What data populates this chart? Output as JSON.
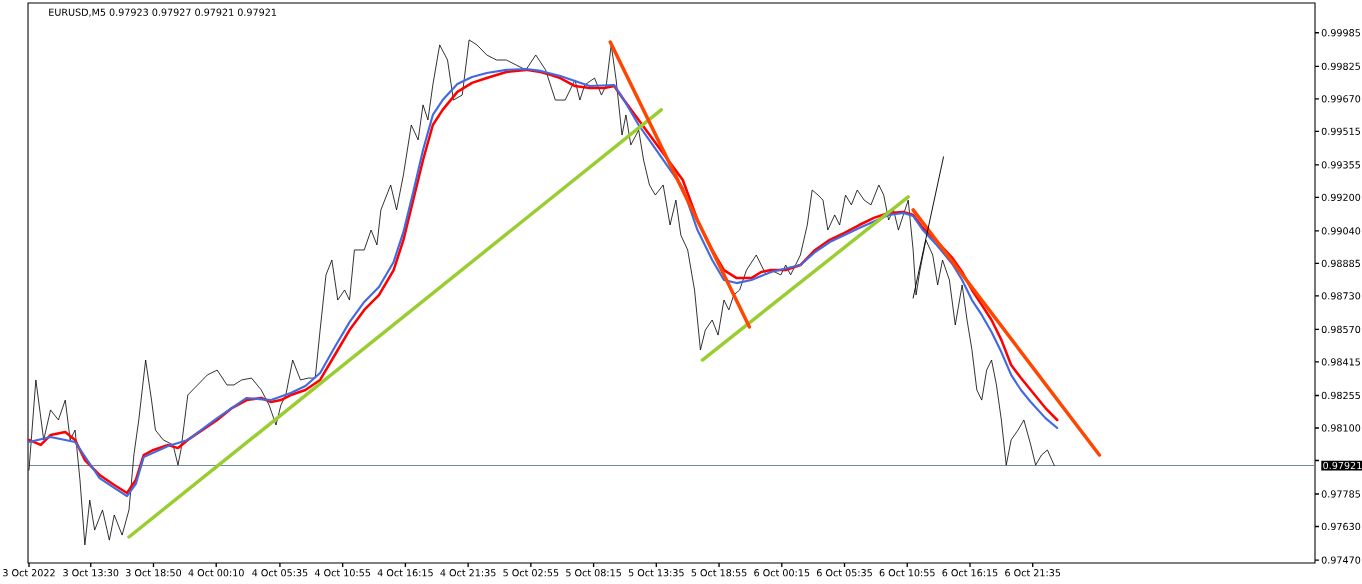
{
  "chart_data": {
    "type": "line",
    "title": "EURUSD,M5  0.97923 0.97927 0.97921 0.97921",
    "xlim": [
      "2022-10-03T08:10",
      "2022-10-07T21:35"
    ],
    "ylim": [
      0.97456,
      1.00127
    ],
    "xticks": [
      {
        "value": "2022-10-03T08:15",
        "label": "3 Oct 2022"
      },
      {
        "value": "2022-10-03T13:30",
        "label": "3 Oct 13:30"
      },
      {
        "value": "2022-10-03T18:50",
        "label": "3 Oct 18:50"
      },
      {
        "value": "2022-10-04T00:10",
        "label": "4 Oct 00:10"
      },
      {
        "value": "2022-10-04T05:35",
        "label": "4 Oct 05:35"
      },
      {
        "value": "2022-10-04T10:55",
        "label": "4 Oct 10:55"
      },
      {
        "value": "2022-10-04T16:15",
        "label": "4 Oct 16:15"
      },
      {
        "value": "2022-10-04T21:35",
        "label": "4 Oct 21:35"
      },
      {
        "value": "2022-10-05T02:55",
        "label": "5 Oct 02:55"
      },
      {
        "value": "2022-10-05T08:15",
        "label": "5 Oct 08:15"
      },
      {
        "value": "2022-10-05T13:35",
        "label": "5 Oct 13:35"
      },
      {
        "value": "2022-10-05T18:55",
        "label": "5 Oct 18:55"
      },
      {
        "value": "2022-10-06T00:15",
        "label": "6 Oct 00:15"
      },
      {
        "value": "2022-10-06T05:35",
        "label": "6 Oct 05:35"
      },
      {
        "value": "2022-10-06T10:55",
        "label": "6 Oct 10:55"
      },
      {
        "value": "2022-10-06T16:15",
        "label": "6 Oct 16:15"
      },
      {
        "value": "2022-10-06T21:35",
        "label": "6 Oct 21:35"
      }
    ],
    "yticks": [
      {
        "value": 0.9747,
        "label": "0.97470"
      },
      {
        "value": 0.9763,
        "label": "0.97630"
      },
      {
        "value": 0.97785,
        "label": "0.97785"
      },
      {
        "value": 0.97945,
        "label": null
      },
      {
        "value": 0.981,
        "label": "0.98100"
      },
      {
        "value": 0.98255,
        "label": "0.98255"
      },
      {
        "value": 0.98415,
        "label": "0.98415"
      },
      {
        "value": 0.9857,
        "label": "0.98570"
      },
      {
        "value": 0.9873,
        "label": "0.98730"
      },
      {
        "value": 0.98885,
        "label": "0.98885"
      },
      {
        "value": 0.9904,
        "label": "0.99040"
      },
      {
        "value": 0.992,
        "label": "0.99200"
      },
      {
        "value": 0.99355,
        "label": "0.99355"
      },
      {
        "value": 0.99515,
        "label": "0.99515"
      },
      {
        "value": 0.9967,
        "label": "0.99670"
      },
      {
        "value": 0.99825,
        "label": "0.99825"
      },
      {
        "value": 0.99985,
        "label": "0.99985"
      }
    ],
    "ref_lines": [
      {
        "axis": "y",
        "value": 0.97921,
        "label": "0.97921",
        "color": "#778899"
      }
    ],
    "series": [
      {
        "color": "#000000",
        "x": [
          "2022-10-03T08:15",
          "2022-10-03T08:50",
          "2022-10-03T09:30",
          "2022-10-03T10:05",
          "2022-10-03T10:45",
          "2022-10-03T11:20",
          "2022-10-03T11:45",
          "2022-10-03T12:10",
          "2022-10-03T12:35",
          "2022-10-03T13:00",
          "2022-10-03T13:25",
          "2022-10-03T13:50",
          "2022-10-03T14:30",
          "2022-10-03T15:05",
          "2022-10-03T15:30",
          "2022-10-03T16:10",
          "2022-10-03T16:45",
          "2022-10-03T17:10",
          "2022-10-03T17:35",
          "2022-10-03T18:10",
          "2022-10-03T18:40",
          "2022-10-03T19:00",
          "2022-10-03T19:40",
          "2022-10-03T20:30",
          "2022-10-03T20:55",
          "2022-10-03T21:10",
          "2022-10-03T21:45",
          "2022-10-03T22:35",
          "2022-10-03T23:25",
          "2022-10-04T00:15",
          "2022-10-04T01:05",
          "2022-10-04T01:40",
          "2022-10-04T02:20",
          "2022-10-04T03:10",
          "2022-10-04T04:00",
          "2022-10-04T04:40",
          "2022-10-04T05:15",
          "2022-10-04T05:40",
          "2022-10-04T06:05",
          "2022-10-04T06:40",
          "2022-10-04T07:20",
          "2022-10-04T08:00",
          "2022-10-04T08:35",
          "2022-10-04T09:00",
          "2022-10-04T09:30",
          "2022-10-04T10:00",
          "2022-10-04T10:30",
          "2022-10-04T11:05",
          "2022-10-04T11:30",
          "2022-10-04T11:55",
          "2022-10-04T12:45",
          "2022-10-04T13:20",
          "2022-10-04T13:50",
          "2022-10-04T14:10",
          "2022-10-04T15:00",
          "2022-10-04T15:30",
          "2022-10-04T16:05",
          "2022-10-04T16:45",
          "2022-10-04T17:20",
          "2022-10-04T17:45",
          "2022-10-04T18:10",
          "2022-10-04T18:35",
          "2022-10-04T19:10",
          "2022-10-04T19:50",
          "2022-10-04T20:20",
          "2022-10-04T21:05",
          "2022-10-04T21:40",
          "2022-10-04T22:20",
          "2022-10-04T23:10",
          "2022-10-05T00:00",
          "2022-10-05T00:50",
          "2022-10-05T01:40",
          "2022-10-05T02:30",
          "2022-10-05T03:20",
          "2022-10-05T04:10",
          "2022-10-05T05:00",
          "2022-10-05T05:50",
          "2022-10-05T06:40",
          "2022-10-05T07:05",
          "2022-10-05T07:30",
          "2022-10-05T08:20",
          "2022-10-05T08:55",
          "2022-10-05T09:20",
          "2022-10-05T09:45",
          "2022-10-05T10:10",
          "2022-10-05T10:40",
          "2022-10-05T11:00",
          "2022-10-05T11:25",
          "2022-10-05T12:05",
          "2022-10-05T12:30",
          "2022-10-05T13:00",
          "2022-10-05T13:30",
          "2022-10-05T14:10",
          "2022-10-05T14:45",
          "2022-10-05T15:15",
          "2022-10-05T15:40",
          "2022-10-05T16:15",
          "2022-10-05T16:50",
          "2022-10-05T17:20",
          "2022-10-05T17:45",
          "2022-10-05T18:20",
          "2022-10-05T18:50",
          "2022-10-05T19:20",
          "2022-10-05T19:45",
          "2022-10-05T20:10",
          "2022-10-05T20:40",
          "2022-10-05T21:15",
          "2022-10-05T22:05",
          "2022-10-05T22:30",
          "2022-10-05T22:55",
          "2022-10-05T23:20",
          "2022-10-06T00:10",
          "2022-10-06T00:35",
          "2022-10-06T01:00",
          "2022-10-06T01:25",
          "2022-10-06T01:50",
          "2022-10-06T02:25",
          "2022-10-06T02:50",
          "2022-10-06T03:20",
          "2022-10-06T03:45",
          "2022-10-06T04:10",
          "2022-10-06T04:45",
          "2022-10-06T05:10",
          "2022-10-06T05:40",
          "2022-10-06T06:10",
          "2022-10-06T06:40",
          "2022-10-06T07:15",
          "2022-10-06T07:50",
          "2022-10-06T08:30",
          "2022-10-06T08:55",
          "2022-10-06T09:20",
          "2022-10-06T09:45",
          "2022-10-06T10:10",
          "2022-10-06T10:35",
          "2022-10-06T11:00",
          "2022-10-06T11:25",
          "2022-10-06T11:40",
          "2022-10-06T12:00",
          "2022-10-06T12:30",
          "2022-10-06T13:05",
          "2022-10-06T13:30",
          "2022-10-06T13:55",
          "2022-10-06T14:30",
          "2022-10-06T15:00",
          "2022-10-06T15:35",
          "2022-10-06T16:00",
          "2022-10-06T16:25",
          "2022-10-06T16:50",
          "2022-10-06T17:15",
          "2022-10-06T17:40",
          "2022-10-06T18:05",
          "2022-10-06T18:30",
          "2022-10-06T18:55",
          "2022-10-06T19:20",
          "2022-10-06T19:45",
          "2022-10-06T20:20",
          "2022-10-06T20:50",
          "2022-10-06T21:25",
          "2022-10-06T21:50",
          "2022-10-06T22:20",
          "2022-10-06T22:50",
          "2022-10-06T23:25"
        ],
        "values": [
          0.97899,
          0.98329,
          0.98043,
          0.98186,
          0.98138,
          0.98233,
          0.98043,
          0.9809,
          0.97852,
          0.97542,
          0.97756,
          0.97613,
          0.97709,
          0.97565,
          0.97685,
          0.97589,
          0.97709,
          0.97971,
          0.98138,
          0.98424,
          0.98233,
          0.9809,
          0.98043,
          0.98019,
          0.97923,
          0.97995,
          0.98257,
          0.98305,
          0.98353,
          0.98376,
          0.98305,
          0.98305,
          0.98329,
          0.98338,
          0.98281,
          0.98209,
          0.98114,
          0.98209,
          0.98257,
          0.98424,
          0.98329,
          0.98338,
          0.98338,
          0.98567,
          0.9883,
          0.98901,
          0.9871,
          0.98758,
          0.9871,
          0.98949,
          0.98949,
          0.99044,
          0.98973,
          0.9914,
          0.99259,
          0.9914,
          0.99307,
          0.99545,
          0.99474,
          0.99641,
          0.99569,
          0.99736,
          0.99927,
          0.99855,
          0.99664,
          0.99688,
          0.99951,
          0.99927,
          0.99879,
          0.99855,
          0.99855,
          0.99831,
          0.99808,
          0.99879,
          0.99808,
          0.99664,
          0.99664,
          0.9976,
          0.99664,
          0.99736,
          0.99769,
          0.99688,
          0.99736,
          0.99927,
          0.9976,
          0.99497,
          0.99593,
          0.9945,
          0.99521,
          0.99378,
          0.99259,
          0.99211,
          0.99259,
          0.99068,
          0.99187,
          0.9902,
          0.98949,
          0.98758,
          0.98472,
          0.98567,
          0.98615,
          0.98543,
          0.9871,
          0.98663,
          0.98734,
          0.98758,
          0.98853,
          0.98925,
          0.98877,
          0.9883,
          0.98853,
          0.9883,
          0.98877,
          0.9883,
          0.98877,
          0.98925,
          0.99068,
          0.99235,
          0.99211,
          0.99187,
          0.99044,
          0.99116,
          0.99068,
          0.99211,
          0.99164,
          0.99235,
          0.99187,
          0.99164,
          0.99259,
          0.99211,
          0.99092,
          0.9914,
          0.99044,
          0.99116,
          0.99187,
          0.98949,
          0.98734,
          0.98853,
          0.98997,
          0.98925,
          0.98782,
          0.98901,
          0.98806,
          0.98591,
          0.98782,
          0.98615,
          0.98472,
          0.98281,
          0.98233,
          0.98376,
          0.98424,
          0.98305,
          0.98138,
          0.97923,
          0.98043,
          0.9809,
          0.98138,
          0.98019,
          0.97923,
          0.97971,
          0.97995,
          0.97921
        ]
      },
      {
        "color": "#ff0000",
        "x": [
          "2022-10-03T08:15",
          "2022-10-03T09:15",
          "2022-10-03T10:05",
          "2022-10-03T11:20",
          "2022-10-03T12:10",
          "2022-10-03T13:00",
          "2022-10-03T14:15",
          "2022-10-03T15:30",
          "2022-10-03T16:35",
          "2022-10-03T17:20",
          "2022-10-03T18:00",
          "2022-10-03T18:50",
          "2022-10-03T20:05",
          "2022-10-03T20:55",
          "2022-10-03T21:45",
          "2022-10-03T23:00",
          "2022-10-04T00:15",
          "2022-10-04T01:30",
          "2022-10-04T02:45",
          "2022-10-04T04:00",
          "2022-10-04T04:50",
          "2022-10-04T05:40",
          "2022-10-04T06:30",
          "2022-10-04T07:45",
          "2022-10-04T09:00",
          "2022-10-04T10:15",
          "2022-10-04T11:30",
          "2022-10-04T12:45",
          "2022-10-04T14:00",
          "2022-10-04T15:15",
          "2022-10-04T16:05",
          "2022-10-04T16:55",
          "2022-10-04T17:45",
          "2022-10-04T18:35",
          "2022-10-04T19:25",
          "2022-10-04T20:40",
          "2022-10-04T21:55",
          "2022-10-04T23:10",
          "2022-10-05T00:50",
          "2022-10-05T02:30",
          "2022-10-05T03:45",
          "2022-10-05T04:35",
          "2022-10-05T05:25",
          "2022-10-05T06:40",
          "2022-10-05T07:55",
          "2022-10-05T09:10",
          "2022-10-05T10:00",
          "2022-10-05T10:50",
          "2022-10-05T12:05",
          "2022-10-05T13:20",
          "2022-10-05T14:35",
          "2022-10-05T15:50",
          "2022-10-05T17:05",
          "2022-10-05T18:20",
          "2022-10-05T19:20",
          "2022-10-05T20:25",
          "2022-10-05T21:40",
          "2022-10-05T22:30",
          "2022-10-05T23:20",
          "2022-10-06T00:35",
          "2022-10-06T01:50",
          "2022-10-06T03:05",
          "2022-10-06T04:20",
          "2022-10-06T05:35",
          "2022-10-06T06:50",
          "2022-10-06T08:05",
          "2022-10-06T09:20",
          "2022-10-06T10:35",
          "2022-10-06T11:25",
          "2022-10-06T12:15",
          "2022-10-06T13:30",
          "2022-10-06T14:45",
          "2022-10-06T15:35",
          "2022-10-06T16:25",
          "2022-10-06T17:15",
          "2022-10-06T18:05",
          "2022-10-06T18:55",
          "2022-10-06T19:45",
          "2022-10-06T20:35",
          "2022-10-06T21:25",
          "2022-10-06T22:40",
          "2022-10-06T23:40"
        ],
        "values": [
          0.98043,
          0.98019,
          0.98066,
          0.98081,
          0.98043,
          0.97947,
          0.97876,
          0.97828,
          0.9779,
          0.97852,
          0.97971,
          0.97995,
          0.98019,
          0.98004,
          0.98043,
          0.9809,
          0.98138,
          0.98195,
          0.98233,
          0.98243,
          0.98224,
          0.98233,
          0.98257,
          0.98281,
          0.98329,
          0.98448,
          0.98567,
          0.98663,
          0.98734,
          0.98853,
          0.98997,
          0.99187,
          0.99378,
          0.99545,
          0.99617,
          0.99703,
          0.99746,
          0.99769,
          0.99798,
          0.99808,
          0.99798,
          0.99784,
          0.99769,
          0.99731,
          0.99722,
          0.99722,
          0.99731,
          0.99664,
          0.99569,
          0.99474,
          0.99378,
          0.99283,
          0.99092,
          0.98949,
          0.98853,
          0.98815,
          0.98815,
          0.98844,
          0.98853,
          0.98853,
          0.98877,
          0.98949,
          0.98997,
          0.9903,
          0.99068,
          0.99102,
          0.99125,
          0.9913,
          0.99116,
          0.99054,
          0.98987,
          0.98911,
          0.98844,
          0.98758,
          0.98687,
          0.98615,
          0.9852,
          0.984,
          0.98338,
          0.98281,
          0.98195,
          0.98138
        ]
      },
      {
        "color": "#4169e1",
        "x": [
          "2022-10-03T08:15",
          "2022-10-03T10:05",
          "2022-10-03T12:10",
          "2022-10-03T14:15",
          "2022-10-03T15:30",
          "2022-10-03T16:35",
          "2022-10-03T17:20",
          "2022-10-03T18:00",
          "2022-10-03T20:05",
          "2022-10-03T21:45",
          "2022-10-04T00:15",
          "2022-10-04T02:45",
          "2022-10-04T04:50",
          "2022-10-04T06:30",
          "2022-10-04T07:45",
          "2022-10-04T09:00",
          "2022-10-04T10:15",
          "2022-10-04T11:30",
          "2022-10-04T12:45",
          "2022-10-04T14:00",
          "2022-10-04T15:15",
          "2022-10-04T16:05",
          "2022-10-04T16:55",
          "2022-10-04T17:45",
          "2022-10-04T18:35",
          "2022-10-04T19:25",
          "2022-10-04T20:40",
          "2022-10-04T21:55",
          "2022-10-04T23:10",
          "2022-10-05T00:50",
          "2022-10-05T02:30",
          "2022-10-05T03:45",
          "2022-10-05T05:25",
          "2022-10-05T07:55",
          "2022-10-05T10:00",
          "2022-10-05T10:50",
          "2022-10-05T12:05",
          "2022-10-05T13:20",
          "2022-10-05T14:35",
          "2022-10-05T15:50",
          "2022-10-05T17:05",
          "2022-10-05T18:20",
          "2022-10-05T19:20",
          "2022-10-05T20:25",
          "2022-10-05T21:40",
          "2022-10-05T23:20",
          "2022-10-06T01:50",
          "2022-10-06T03:05",
          "2022-10-06T04:20",
          "2022-10-06T06:50",
          "2022-10-06T09:20",
          "2022-10-06T10:35",
          "2022-10-06T11:25",
          "2022-10-06T12:15",
          "2022-10-06T13:30",
          "2022-10-06T14:45",
          "2022-10-06T15:35",
          "2022-10-06T16:25",
          "2022-10-06T17:15",
          "2022-10-06T18:05",
          "2022-10-06T18:55",
          "2022-10-06T19:45",
          "2022-10-06T20:35",
          "2022-10-06T21:25",
          "2022-10-06T22:40",
          "2022-10-06T23:40"
        ],
        "values": [
          0.98033,
          0.98057,
          0.98033,
          0.97861,
          0.97814,
          0.97775,
          0.97833,
          0.97961,
          0.98014,
          0.98043,
          0.98147,
          0.98243,
          0.98233,
          0.98267,
          0.983,
          0.98362,
          0.98486,
          0.98605,
          0.98701,
          0.98772,
          0.98892,
          0.99035,
          0.99226,
          0.99426,
          0.99593,
          0.99664,
          0.99741,
          0.99774,
          0.99793,
          0.99808,
          0.99812,
          0.99803,
          0.99779,
          0.99731,
          0.99736,
          0.99664,
          0.99545,
          0.99445,
          0.99345,
          0.99245,
          0.99044,
          0.98901,
          0.98806,
          0.98791,
          0.98806,
          0.98844,
          0.98877,
          0.98939,
          0.98987,
          0.99054,
          0.99116,
          0.99125,
          0.99111,
          0.99044,
          0.98968,
          0.98882,
          0.98806,
          0.9871,
          0.98639,
          0.98558,
          0.98462,
          0.98353,
          0.98281,
          0.98224,
          0.98147,
          0.981
        ]
      },
      {
        "color": "#9acd32",
        "x": [
          "2022-10-03T16:45",
          "2022-10-05T14:00"
        ],
        "values": [
          0.9758,
          0.99617
        ]
      },
      {
        "color": "#9acd32",
        "x": [
          "2022-10-05T17:30",
          "2022-10-06T11:00"
        ],
        "values": [
          0.98424,
          0.99202
        ]
      },
      {
        "color": "#ff4500",
        "x": [
          "2022-10-05T09:40",
          "2022-10-05T21:30"
        ],
        "values": [
          0.99941,
          0.98582
        ]
      },
      {
        "color": "#ff4500",
        "x": [
          "2022-10-06T11:25",
          "2022-10-07T03:15"
        ],
        "values": [
          0.9914,
          0.97971
        ]
      },
      {
        "color": "#000000",
        "x": [
          "2022-10-06T11:25",
          "2022-10-06T14:00"
        ],
        "values": [
          0.9872,
          0.99393
        ]
      }
    ]
  }
}
